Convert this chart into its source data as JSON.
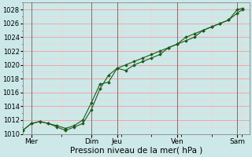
{
  "background_color": "#cce8e8",
  "grid_major_color": "#ff9999",
  "grid_minor_color": "#ffcccc",
  "line_color": "#1a5c1a",
  "marker_color": "#1a5c1a",
  "xlabel": "Pression niveau de la mer( hPa )",
  "ylim": [
    1010,
    1029
  ],
  "yticks": [
    1010,
    1012,
    1014,
    1016,
    1018,
    1020,
    1022,
    1024,
    1026,
    1028
  ],
  "xtick_labels": [
    "Mer",
    "Dim",
    "Jeu",
    "Ven",
    "Sam"
  ],
  "xtick_positions": [
    0.5,
    4.0,
    5.5,
    9.0,
    12.5
  ],
  "series1_x": [
    0.0,
    0.5,
    1.0,
    1.5,
    2.0,
    2.5,
    3.0,
    3.5,
    4.0,
    4.5,
    5.0,
    5.5,
    6.0,
    6.5,
    7.0,
    7.5,
    8.0,
    8.5,
    9.0,
    9.5,
    10.0,
    10.5,
    11.0,
    11.5,
    12.0,
    12.5,
    12.8
  ],
  "series1_y": [
    1010.5,
    1011.5,
    1011.8,
    1011.5,
    1011.2,
    1010.8,
    1011.2,
    1012.0,
    1014.5,
    1017.2,
    1017.5,
    1019.5,
    1019.2,
    1020.0,
    1020.5,
    1021.0,
    1021.5,
    1022.5,
    1023.0,
    1023.5,
    1024.0,
    1025.0,
    1025.5,
    1026.0,
    1026.5,
    1027.5,
    1028.0
  ],
  "series2_x": [
    0.0,
    0.5,
    1.0,
    1.5,
    2.0,
    2.5,
    3.0,
    3.5,
    4.0,
    4.5,
    5.0,
    5.5,
    6.0,
    6.5,
    7.0,
    7.5,
    8.0,
    8.5,
    9.0,
    9.5,
    10.0,
    10.5,
    11.0,
    11.5,
    12.0,
    12.5,
    12.8
  ],
  "series2_y": [
    1010.5,
    1011.5,
    1011.8,
    1011.5,
    1011.0,
    1010.5,
    1011.0,
    1011.5,
    1013.5,
    1016.5,
    1018.5,
    1019.5,
    1020.0,
    1020.5,
    1021.0,
    1021.5,
    1022.0,
    1022.5,
    1023.0,
    1024.0,
    1024.5,
    1025.0,
    1025.5,
    1026.0,
    1026.5,
    1028.0,
    1028.2
  ],
  "vline_positions": [
    0.5,
    4.0,
    5.5,
    9.0,
    12.5
  ],
  "vline_color": "#555555",
  "font_size_xlabel": 7.5,
  "font_size_ytick": 6.0,
  "font_size_xtick": 6.5
}
